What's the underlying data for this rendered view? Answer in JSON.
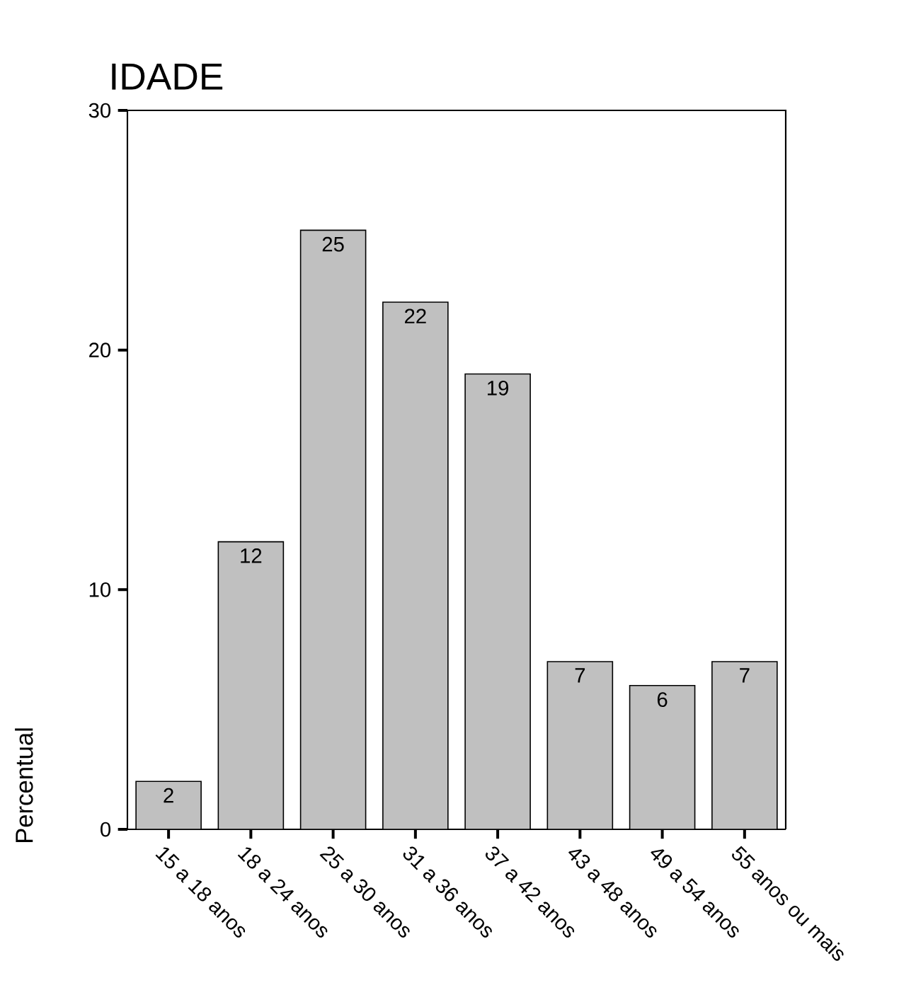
{
  "chart_data": {
    "type": "bar",
    "title": "IDADE",
    "ylabel": "Percentual",
    "categories": [
      "15 a 18 anos",
      "18 a 24 anos",
      "25 a 30 anos",
      "31 a 36 anos",
      "37 a 42 anos",
      "43 a 48 anos",
      "49 a 54 anos",
      "55 anos ou mais"
    ],
    "values": [
      2,
      12,
      25,
      22,
      19,
      7,
      6,
      7
    ],
    "color": "#c0c0c0",
    "ylim": [
      0,
      30
    ],
    "yticks": [
      0,
      10,
      20,
      30
    ],
    "data_labels": true,
    "grid": false
  }
}
